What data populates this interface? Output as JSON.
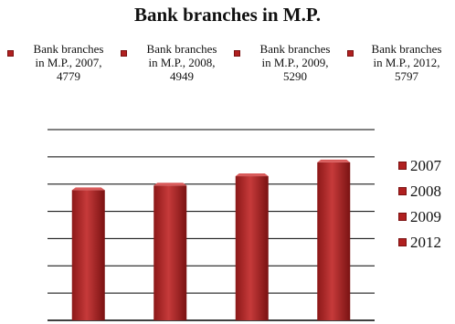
{
  "chart_data": {
    "type": "bar",
    "title": "Bank branches in M.P.",
    "categories": [
      "2007",
      "2008",
      "2009",
      "2012"
    ],
    "values": [
      4779,
      4949,
      5290,
      5797
    ],
    "series_name": "Bank branches in M.P.",
    "data_labels": [
      {
        "line1": "Bank branches",
        "line2": "in M.P., 2007,",
        "line3": "4779"
      },
      {
        "line1": "Bank branches",
        "line2": "in M.P., 2008,",
        "line3": "4949"
      },
      {
        "line1": "Bank branches",
        "line2": "in M.P., 2009,",
        "line3": "5290"
      },
      {
        "line1": "Bank branches",
        "line2": "in M.P., 2012,",
        "line3": "5797"
      }
    ],
    "legend": [
      "2007",
      "2008",
      "2009",
      "2012"
    ],
    "legend_position": "right",
    "ylim": [
      0,
      7000
    ],
    "grid": true,
    "colors": {
      "bar": "#b32424",
      "bar_dark": "#7f1414",
      "bar_light": "#d85a5a",
      "grid": "#000000"
    }
  }
}
